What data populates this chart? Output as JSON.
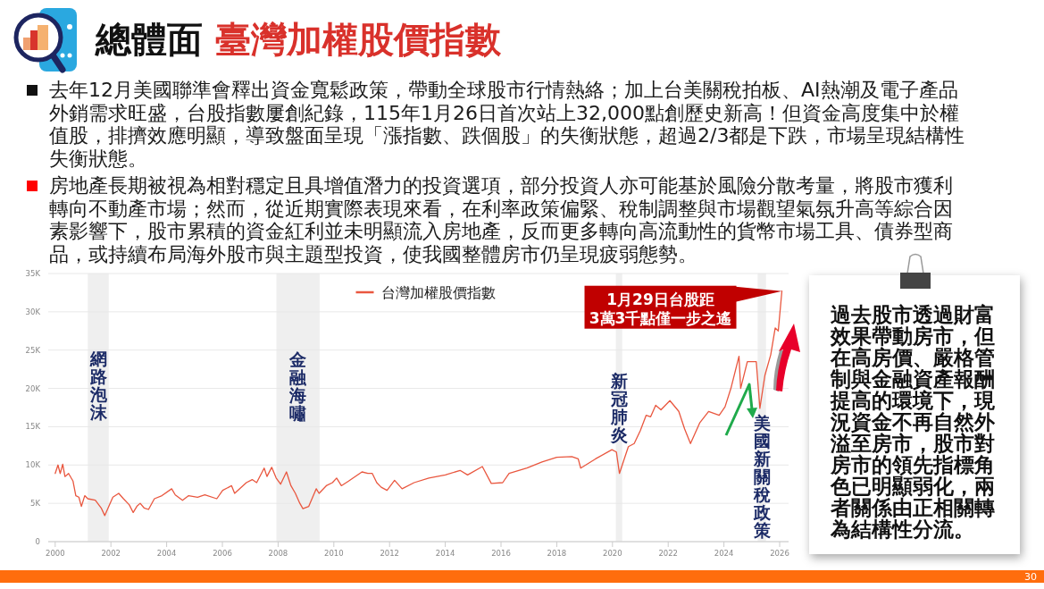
{
  "chart_data": {
    "type": "line",
    "title": "總體面 臺灣加權股價指數",
    "annotations": [
      "去年12月美國聯準會釋出資金寬鬆政策，帶動全球股市行情熱絡；加上台美關稅拍板、AI熱潮及電子產品外銷需求旺盛，台股指數屢創紀錄，115年1月26日首次站上32,000點創歷史新高！但資金高度集中於權值股，排擠效應明顯，導致盤面呈現「漲指數、跌個股」的失衡狀態，超過2/3都是下跌，市場呈現結構性失衡狀態。",
      "房地產長期被視為相對穩定且具增值潛力的投資選項，部分投資人亦可能基於風險分散考量，將股市獲利轉向不動產市場；然而，從近期實際表現來看，在利率政策偏緊、稅制調整與市場觀望氣氛升高等綜合因素影響下，股市累積的資金紅利並未明顯流入房地產，反而更多轉向高流動性的貨幣市場工具、債券型商品，或持續布局海外股市與主題型投資，使我國整體房市仍呈現疲弱態勢。",
      "過去股市透過財富效果帶動房市，但在高房價、嚴格管制與金融資產報酬提高的環境下，現況資金不再自然外溢至房市，股市對房市的領先指標角色已明顯弱化，兩者關係由正相關轉為結構性分流。",
      {
        "text": "1月29日台股距\n3萬3千點僅一步之遙",
        "x": 2026.08,
        "y": 32700
      },
      "30"
    ],
    "x": [
      2000.0,
      2000.1,
      2000.18,
      2000.27,
      2000.35,
      2000.48,
      2000.64,
      2000.74,
      2000.85,
      2000.94,
      2001.06,
      2001.17,
      2001.44,
      2001.65,
      2001.78,
      2001.97,
      2002.07,
      2002.28,
      2002.45,
      2002.66,
      2002.8,
      2002.93,
      2003.05,
      2003.19,
      2003.35,
      2003.56,
      2003.83,
      2004.18,
      2004.31,
      2004.57,
      2004.79,
      2005.11,
      2005.37,
      2005.8,
      2006.01,
      2006.33,
      2006.44,
      2006.86,
      2007.07,
      2007.23,
      2007.5,
      2007.6,
      2007.77,
      2007.93,
      2008.09,
      2008.3,
      2008.46,
      2008.62,
      2008.78,
      2008.89,
      2009.1,
      2009.37,
      2009.47,
      2009.73,
      2009.95,
      2010.1,
      2010.27,
      2010.53,
      2011.01,
      2011.22,
      2011.38,
      2011.54,
      2011.7,
      2011.91,
      2012.18,
      2012.45,
      2012.88,
      2013.41,
      2014.0,
      2014.53,
      2014.8,
      2015.33,
      2015.65,
      2016.06,
      2016.29,
      2016.93,
      2017.47,
      2018.0,
      2018.54,
      2018.77,
      2018.86,
      2019.39,
      2019.98,
      2020.14,
      2020.25,
      2020.57,
      2020.78,
      2021.0,
      2021.21,
      2021.37,
      2021.55,
      2021.74,
      2022.06,
      2022.38,
      2022.59,
      2022.8,
      2023.13,
      2023.45,
      2023.83,
      2024.04,
      2024.25,
      2024.54,
      2024.6,
      2024.84,
      2025.16,
      2025.29,
      2025.47,
      2025.68,
      2025.84,
      2025.95,
      2026.08
    ],
    "series": [
      {
        "name": "台灣加權股價指數",
        "color": "#e9573f",
        "values": [
          8900,
          10000,
          8900,
          10100,
          8500,
          8900,
          7900,
          6000,
          5800,
          4600,
          6000,
          5600,
          5400,
          4400,
          3400,
          5000,
          5800,
          6300,
          5600,
          4800,
          3800,
          4600,
          5000,
          4400,
          4200,
          5600,
          6000,
          6900,
          6100,
          5400,
          6000,
          5800,
          6100,
          5600,
          6700,
          7300,
          6300,
          7700,
          8100,
          7700,
          9600,
          8500,
          9700,
          8300,
          7500,
          9100,
          7300,
          6300,
          5000,
          4300,
          4600,
          6900,
          6300,
          7300,
          7700,
          8300,
          7300,
          7900,
          9100,
          8900,
          8900,
          7700,
          7100,
          6700,
          8000,
          6900,
          7700,
          8300,
          8700,
          9300,
          8700,
          9800,
          7600,
          7700,
          8900,
          9600,
          10400,
          11000,
          11100,
          10800,
          9600,
          10800,
          12000,
          11700,
          8900,
          12400,
          12800,
          14500,
          16500,
          16300,
          17800,
          17200,
          18400,
          17000,
          14700,
          12800,
          15500,
          17000,
          16500,
          17600,
          20000,
          24200,
          20000,
          23500,
          23500,
          17400,
          21700,
          24400,
          27900,
          27500,
          32700
        ]
      }
    ],
    "xlim": [
      1999.75,
      2026.32
    ],
    "xticks": [
      2000,
      2002,
      2004,
      2006,
      2008,
      2010,
      2012,
      2014,
      2016,
      2018,
      2020,
      2022,
      2024,
      2026
    ],
    "ylim": [
      0,
      35000
    ],
    "yticks": [
      0,
      {
        "value": 5000,
        "label": "5K"
      },
      {
        "value": 10000,
        "label": "10K"
      },
      {
        "value": 15000,
        "label": "15K"
      },
      {
        "value": 20000,
        "label": "20K"
      },
      {
        "value": 25000,
        "label": "25K"
      },
      {
        "value": 30000,
        "label": "30K"
      },
      {
        "value": 35000,
        "label": "35K"
      }
    ],
    "grid": "y",
    "legend": "top",
    "bands": [
      {
        "axis": "x",
        "from": 2001.17,
        "to": 2001.92,
        "label": "網路泡沫",
        "color": "#efefef"
      },
      {
        "axis": "x",
        "from": 2007.94,
        "to": 2009.49,
        "label": "金融海嘯",
        "color": "#efefef"
      },
      {
        "axis": "x",
        "from": 2020.12,
        "to": 2020.35,
        "label": "新冠肺炎",
        "color": "#efefef"
      },
      {
        "axis": "x",
        "from": 2025.21,
        "to": 2025.51,
        "label": "美國新關稅政策",
        "color": "#efefef"
      }
    ]
  }
}
